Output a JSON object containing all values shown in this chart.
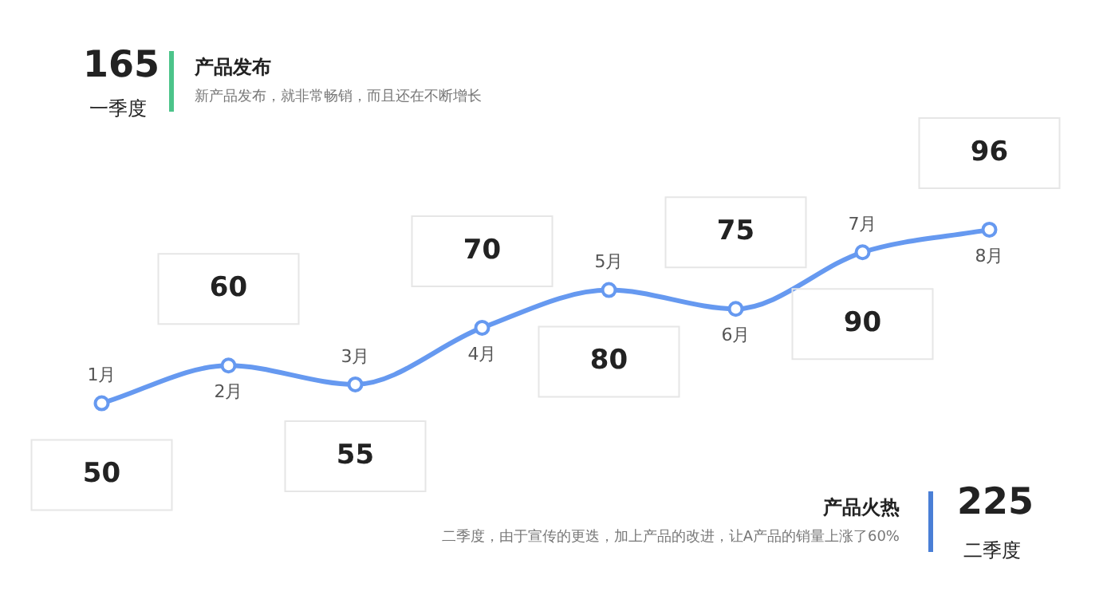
{
  "chart_data": {
    "type": "line",
    "categories": [
      "1月",
      "2月",
      "3月",
      "4月",
      "5月",
      "6月",
      "7月",
      "8月"
    ],
    "series": [
      {
        "color": "#6699f0",
        "values": [
          50,
          60,
          55,
          70,
          80,
          75,
          90,
          96
        ]
      }
    ],
    "data_labels": true,
    "marker": "circle",
    "line_style": "solid",
    "legend": false,
    "annotations": [
      "165",
      "一季度",
      "产品发布",
      "新产品发布，就非常畅销，而且还在不断增长",
      "产品火热",
      "二季度，由于宣传的更迭，加上产品的改进，让A产品的销量上涨了60%",
      "225",
      "二季度"
    ]
  }
}
